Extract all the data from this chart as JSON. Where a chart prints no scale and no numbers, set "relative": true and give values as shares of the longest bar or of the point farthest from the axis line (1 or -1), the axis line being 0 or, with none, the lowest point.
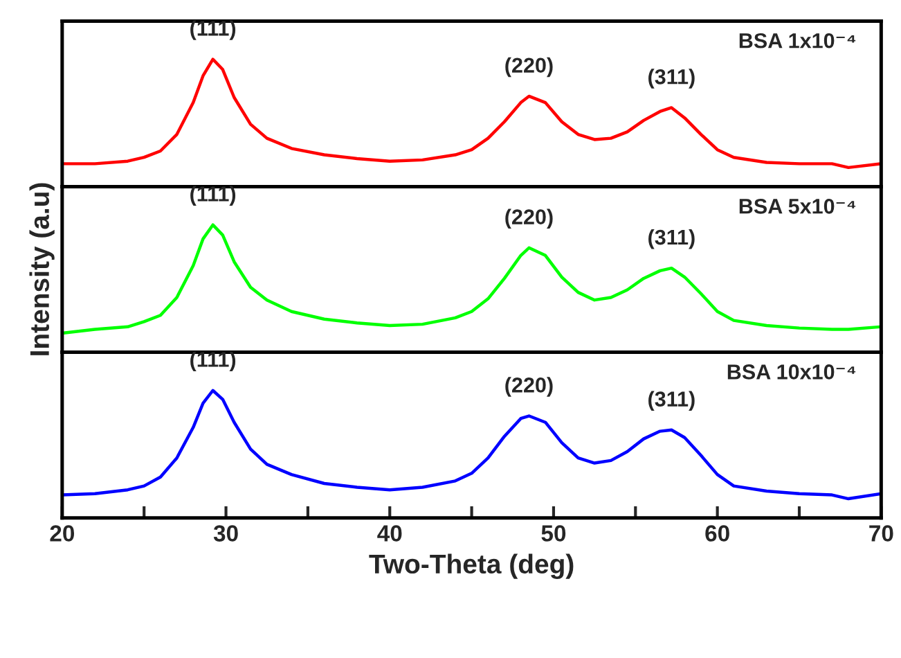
{
  "chart_data": [
    {
      "type": "line",
      "relative": true,
      "xlim": [
        20,
        70
      ],
      "tick_labels": false,
      "series": [
        {
          "color": "#ff0000",
          "x": [
            20,
            22,
            24,
            25,
            26,
            27,
            28,
            28.6,
            29.2,
            29.8,
            30.5,
            31.5,
            32.5,
            34,
            36,
            38,
            40,
            42,
            44,
            45,
            46,
            47,
            48,
            48.5,
            49.5,
            50.5,
            51.5,
            52.5,
            53.5,
            54.5,
            55.5,
            56.5,
            57.2,
            58,
            59,
            60,
            61,
            63,
            65,
            67,
            68,
            70
          ],
          "values": [
            0.18,
            0.18,
            0.2,
            0.23,
            0.28,
            0.41,
            0.66,
            0.87,
            1.0,
            0.92,
            0.7,
            0.49,
            0.38,
            0.3,
            0.25,
            0.22,
            0.2,
            0.21,
            0.25,
            0.29,
            0.38,
            0.51,
            0.66,
            0.71,
            0.66,
            0.51,
            0.41,
            0.37,
            0.38,
            0.43,
            0.52,
            0.59,
            0.62,
            0.54,
            0.41,
            0.29,
            0.23,
            0.19,
            0.18,
            0.18,
            0.15,
            0.18
          ]
        }
      ],
      "annotations": [
        "(111)",
        "(220)",
        "(311)",
        "BSA 1x10⁻⁴"
      ]
    },
    {
      "type": "line",
      "relative": true,
      "xlim": [
        20,
        70
      ],
      "tick_labels": false,
      "ylabel": "Intensity (a.u)",
      "series": [
        {
          "color": "#00ff00",
          "x": [
            20,
            22,
            24,
            25,
            26,
            27,
            28,
            28.6,
            29.2,
            29.8,
            30.5,
            31.5,
            32.5,
            34,
            36,
            38,
            40,
            42,
            44,
            45,
            46,
            47,
            48,
            48.5,
            49.5,
            50.5,
            51.5,
            52.5,
            53.5,
            54.5,
            55.5,
            56.5,
            57.2,
            58,
            59,
            60,
            61,
            63,
            65,
            67,
            68,
            70
          ],
          "values": [
            0.15,
            0.18,
            0.2,
            0.24,
            0.29,
            0.43,
            0.68,
            0.89,
            1.0,
            0.92,
            0.71,
            0.51,
            0.41,
            0.32,
            0.26,
            0.23,
            0.21,
            0.22,
            0.27,
            0.32,
            0.42,
            0.58,
            0.76,
            0.82,
            0.76,
            0.59,
            0.47,
            0.41,
            0.43,
            0.49,
            0.58,
            0.64,
            0.66,
            0.59,
            0.46,
            0.32,
            0.25,
            0.21,
            0.19,
            0.18,
            0.18,
            0.2
          ]
        }
      ],
      "annotations": [
        "(111)",
        "(220)",
        "(311)",
        "BSA 5x10⁻⁴"
      ]
    },
    {
      "type": "line",
      "relative": true,
      "xlim": [
        20,
        70
      ],
      "tick_labels": "x",
      "xlabel": "Two-Theta (deg)",
      "xticks": [
        20,
        {
          "value": 25,
          "label": null
        },
        30,
        {
          "value": 35,
          "label": null
        },
        40,
        {
          "value": 45,
          "label": null
        },
        50,
        {
          "value": 55,
          "label": null
        },
        60,
        {
          "value": 65,
          "label": null
        },
        70
      ],
      "series": [
        {
          "color": "#0000ff",
          "x": [
            20,
            22,
            24,
            25,
            26,
            27,
            28,
            28.6,
            29.2,
            29.8,
            30.5,
            31.5,
            32.5,
            34,
            36,
            38,
            40,
            42,
            44,
            45,
            46,
            47,
            48,
            48.5,
            49.5,
            50.5,
            51.5,
            52.5,
            53.5,
            54.5,
            55.5,
            56.5,
            57.2,
            58,
            59,
            60,
            61,
            63,
            65,
            67,
            68,
            70
          ],
          "values": [
            0.18,
            0.19,
            0.22,
            0.25,
            0.32,
            0.47,
            0.71,
            0.9,
            1.0,
            0.93,
            0.75,
            0.54,
            0.42,
            0.34,
            0.27,
            0.24,
            0.22,
            0.24,
            0.29,
            0.35,
            0.47,
            0.64,
            0.78,
            0.8,
            0.75,
            0.59,
            0.47,
            0.43,
            0.45,
            0.52,
            0.62,
            0.68,
            0.69,
            0.63,
            0.49,
            0.34,
            0.25,
            0.21,
            0.19,
            0.18,
            0.15,
            0.19
          ]
        }
      ],
      "annotations": [
        "(111)",
        "(220)",
        "(311)",
        "BSA 10x10⁻⁴"
      ]
    }
  ]
}
